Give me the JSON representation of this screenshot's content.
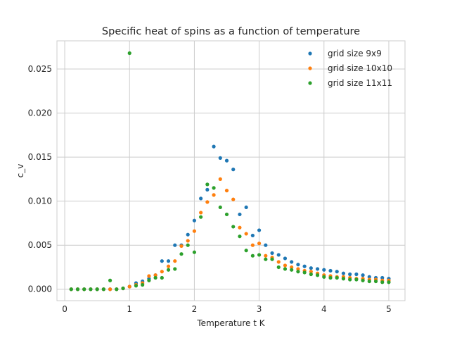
{
  "chart_data": {
    "type": "scatter",
    "title": "Specific heat of spins as a function of temperature",
    "xlabel": "Temperature t K",
    "ylabel": "c_v",
    "xlim": [
      -0.12,
      5.25
    ],
    "ylim": [
      -0.0013,
      0.0282
    ],
    "xticks": [
      0,
      1,
      2,
      3,
      4,
      5
    ],
    "xtick_labels": [
      "0",
      "1",
      "2",
      "3",
      "4",
      "5"
    ],
    "yticks": [
      0,
      0.005,
      0.01,
      0.015,
      0.02,
      0.025
    ],
    "ytick_labels": [
      "0.000",
      "0.005",
      "0.010",
      "0.015",
      "0.020",
      "0.025"
    ],
    "grid": true,
    "legend_position": "top-right",
    "series": [
      {
        "name": "grid size  9x9",
        "color": "#1f77b4",
        "x": [
          0.1,
          0.2,
          0.3,
          0.4,
          0.5,
          0.6,
          0.7,
          0.8,
          0.9,
          1.0,
          1.1,
          1.2,
          1.3,
          1.4,
          1.5,
          1.6,
          1.7,
          1.8,
          1.9,
          2.0,
          2.1,
          2.2,
          2.3,
          2.4,
          2.5,
          2.6,
          2.7,
          2.8,
          2.9,
          3.0,
          3.1,
          3.2,
          3.3,
          3.4,
          3.5,
          3.6,
          3.7,
          3.8,
          3.9,
          4.0,
          4.1,
          4.2,
          4.3,
          4.4,
          4.5,
          4.6,
          4.7,
          4.8,
          4.9,
          5.0
        ],
        "y": [
          0.0,
          0.0,
          0.0,
          0.0,
          0.0,
          0.0,
          0.0,
          0.0,
          0.0001,
          0.0003,
          0.0007,
          0.0009,
          0.0012,
          0.0016,
          0.0032,
          0.0032,
          0.005,
          0.005,
          0.0062,
          0.0078,
          0.0103,
          0.0113,
          0.0162,
          0.0149,
          0.0146,
          0.0136,
          0.0085,
          0.0093,
          0.0061,
          0.0067,
          0.005,
          0.0041,
          0.0039,
          0.0035,
          0.0031,
          0.0028,
          0.0026,
          0.0024,
          0.0023,
          0.0022,
          0.0021,
          0.002,
          0.0018,
          0.0017,
          0.0017,
          0.0016,
          0.0014,
          0.0013,
          0.0013,
          0.0012
        ]
      },
      {
        "name": "grid size  10x10",
        "color": "#ff7f0e",
        "x": [
          0.1,
          0.2,
          0.3,
          0.4,
          0.5,
          0.6,
          0.7,
          0.8,
          0.9,
          1.0,
          1.1,
          1.2,
          1.3,
          1.4,
          1.5,
          1.6,
          1.7,
          1.8,
          1.9,
          2.0,
          2.1,
          2.2,
          2.3,
          2.4,
          2.5,
          2.6,
          2.7,
          2.8,
          2.9,
          3.0,
          3.1,
          3.2,
          3.3,
          3.4,
          3.5,
          3.6,
          3.7,
          3.8,
          3.9,
          4.0,
          4.1,
          4.2,
          4.3,
          4.4,
          4.5,
          4.6,
          4.7,
          4.8,
          4.9,
          5.0
        ],
        "y": [
          0.0,
          0.0,
          0.0,
          0.0,
          0.0,
          0.0,
          0.0,
          0.0,
          0.0001,
          0.0003,
          0.0005,
          0.0007,
          0.0015,
          0.0016,
          0.002,
          0.0026,
          0.0032,
          0.0049,
          0.0055,
          0.0066,
          0.0087,
          0.0099,
          0.0107,
          0.0125,
          0.0112,
          0.0102,
          0.007,
          0.0063,
          0.005,
          0.0052,
          0.0038,
          0.0036,
          0.0031,
          0.0027,
          0.0025,
          0.0023,
          0.0021,
          0.002,
          0.0018,
          0.0016,
          0.0015,
          0.0014,
          0.0014,
          0.0013,
          0.0012,
          0.0012,
          0.0011,
          0.0011,
          0.001,
          0.001
        ]
      },
      {
        "name": "grid size  11x11",
        "color": "#2ca02c",
        "x": [
          0.1,
          0.2,
          0.3,
          0.4,
          0.5,
          0.6,
          0.7,
          0.8,
          0.9,
          1.0,
          1.1,
          1.2,
          1.3,
          1.4,
          1.5,
          1.6,
          1.7,
          1.8,
          1.9,
          2.0,
          2.1,
          2.2,
          2.3,
          2.4,
          2.5,
          2.6,
          2.7,
          2.8,
          2.9,
          3.0,
          3.1,
          3.2,
          3.3,
          3.4,
          3.5,
          3.6,
          3.7,
          3.8,
          3.9,
          4.0,
          4.1,
          4.2,
          4.3,
          4.4,
          4.5,
          4.6,
          4.7,
          4.8,
          4.9,
          5.0
        ],
        "y": [
          0.0,
          0.0,
          0.0,
          0.0,
          0.0,
          0.0,
          0.001,
          0.0,
          0.0001,
          0.0268,
          0.0004,
          0.0005,
          0.001,
          0.0013,
          0.0013,
          0.0022,
          0.0023,
          0.004,
          0.005,
          0.0042,
          0.0082,
          0.0119,
          0.0115,
          0.0093,
          0.0085,
          0.0071,
          0.006,
          0.0044,
          0.0038,
          0.0039,
          0.0034,
          0.0034,
          0.0025,
          0.0023,
          0.0022,
          0.002,
          0.0019,
          0.0017,
          0.0016,
          0.0014,
          0.0013,
          0.0013,
          0.0012,
          0.0011,
          0.0011,
          0.001,
          0.0009,
          0.0009,
          0.0008,
          0.0008
        ]
      }
    ]
  }
}
